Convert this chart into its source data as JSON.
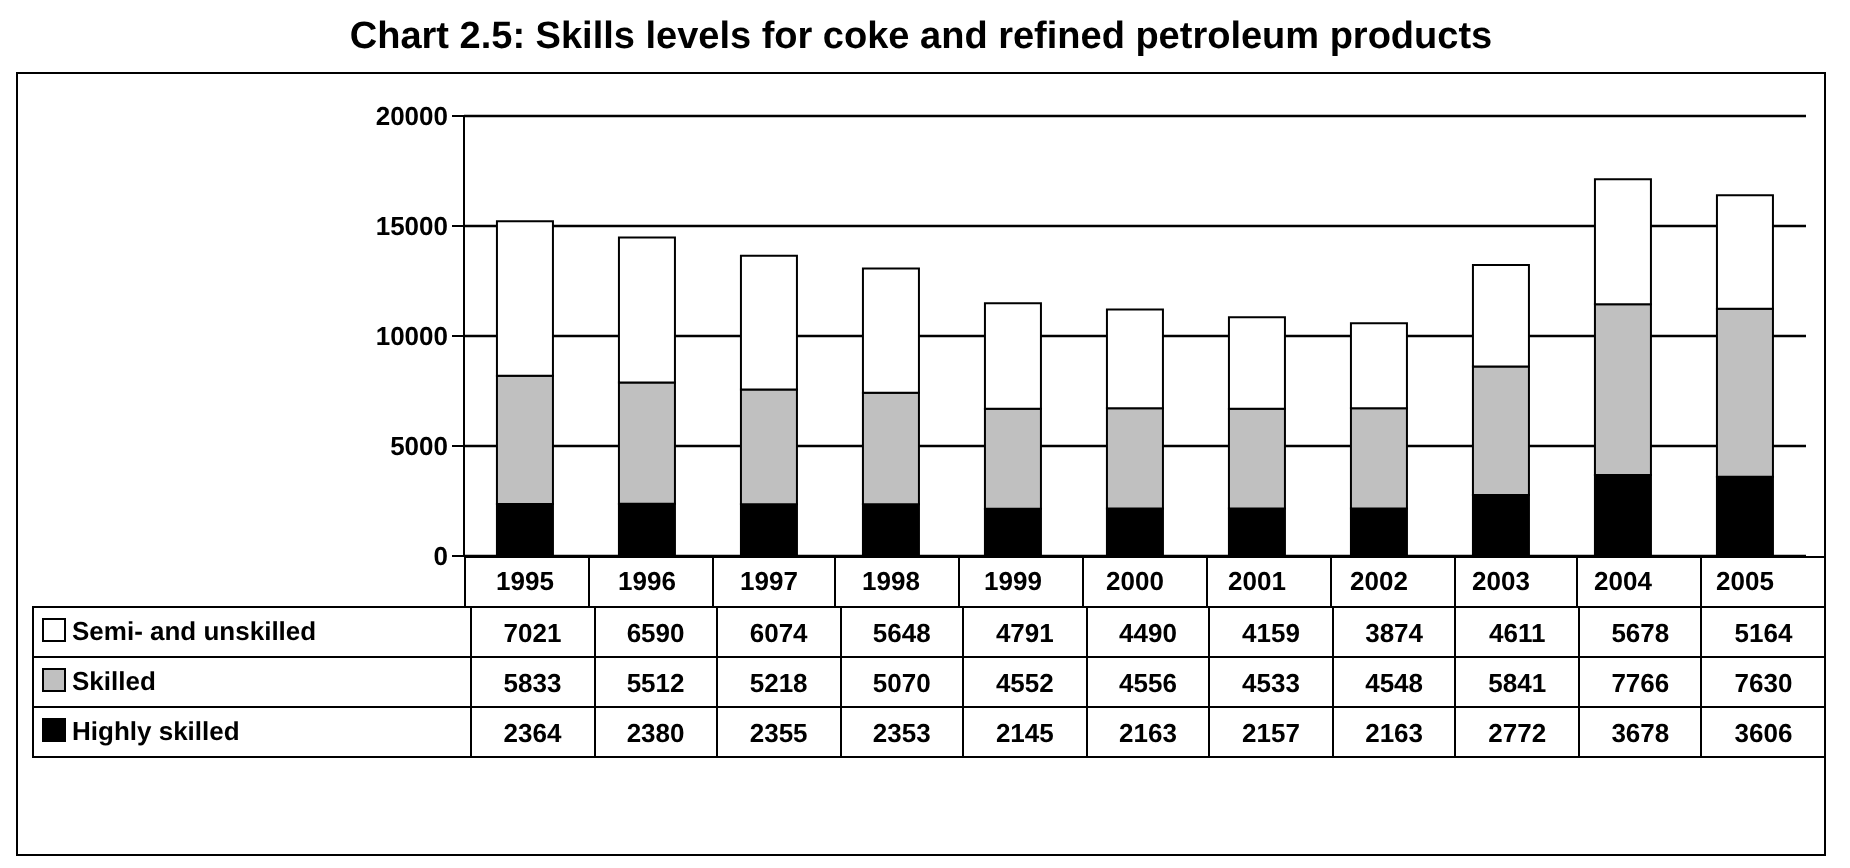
{
  "chart_data": {
    "type": "bar",
    "title": "Chart 2.5: Skills levels for coke and refined petroleum products",
    "categories": [
      "1995",
      "1996",
      "1997",
      "1998",
      "1999",
      "2000",
      "2001",
      "2002",
      "2003",
      "2004",
      "2005"
    ],
    "series": [
      {
        "name": "Highly skilled",
        "color": "#000000",
        "values": [
          2364,
          2380,
          2355,
          2353,
          2145,
          2163,
          2157,
          2163,
          2772,
          3678,
          3606
        ]
      },
      {
        "name": "Skilled",
        "color": "#c0c0c0",
        "values": [
          5833,
          5512,
          5218,
          5070,
          4552,
          4556,
          4533,
          4548,
          5841,
          7766,
          7630
        ]
      },
      {
        "name": "Semi- and unskilled",
        "color": "#ffffff",
        "values": [
          7021,
          6590,
          6074,
          5648,
          4791,
          4490,
          4159,
          3874,
          4611,
          5678,
          5164
        ]
      }
    ],
    "stacked": true,
    "ylim": [
      0,
      20000
    ],
    "yticks": [
      0,
      5000,
      10000,
      15000,
      20000
    ],
    "grid": "y",
    "legend": "bottom",
    "data_labels": true
  }
}
